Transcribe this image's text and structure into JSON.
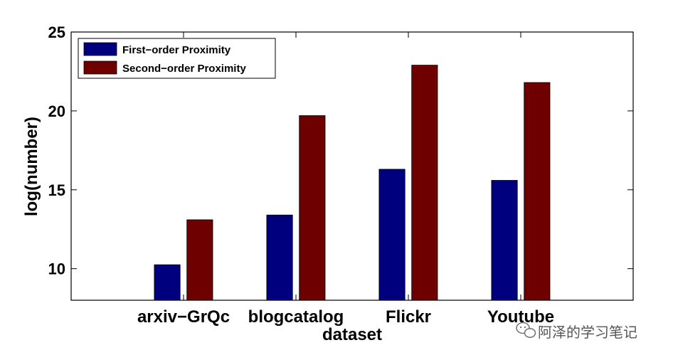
{
  "chart_data": {
    "type": "bar",
    "title": "",
    "xlabel": "dataset",
    "ylabel": "log(number)",
    "categories": [
      "arxiv−GrQc",
      "blogcatalog",
      "Flickr",
      "Youtube"
    ],
    "series": [
      {
        "name": "First−order Proximity",
        "values": [
          10.25,
          13.4,
          16.3,
          15.6
        ],
        "color": "#00007f"
      },
      {
        "name": "Second−order Proximity",
        "values": [
          13.1,
          19.7,
          22.9,
          21.8
        ],
        "color": "#6e0000"
      }
    ],
    "ylim": [
      8,
      25
    ],
    "xlim": [
      0,
      5
    ],
    "yticks": [
      10,
      15,
      20,
      25
    ],
    "grid": false,
    "legend_position": "top-left"
  },
  "watermark": {
    "text": "阿泽的学习笔记"
  }
}
